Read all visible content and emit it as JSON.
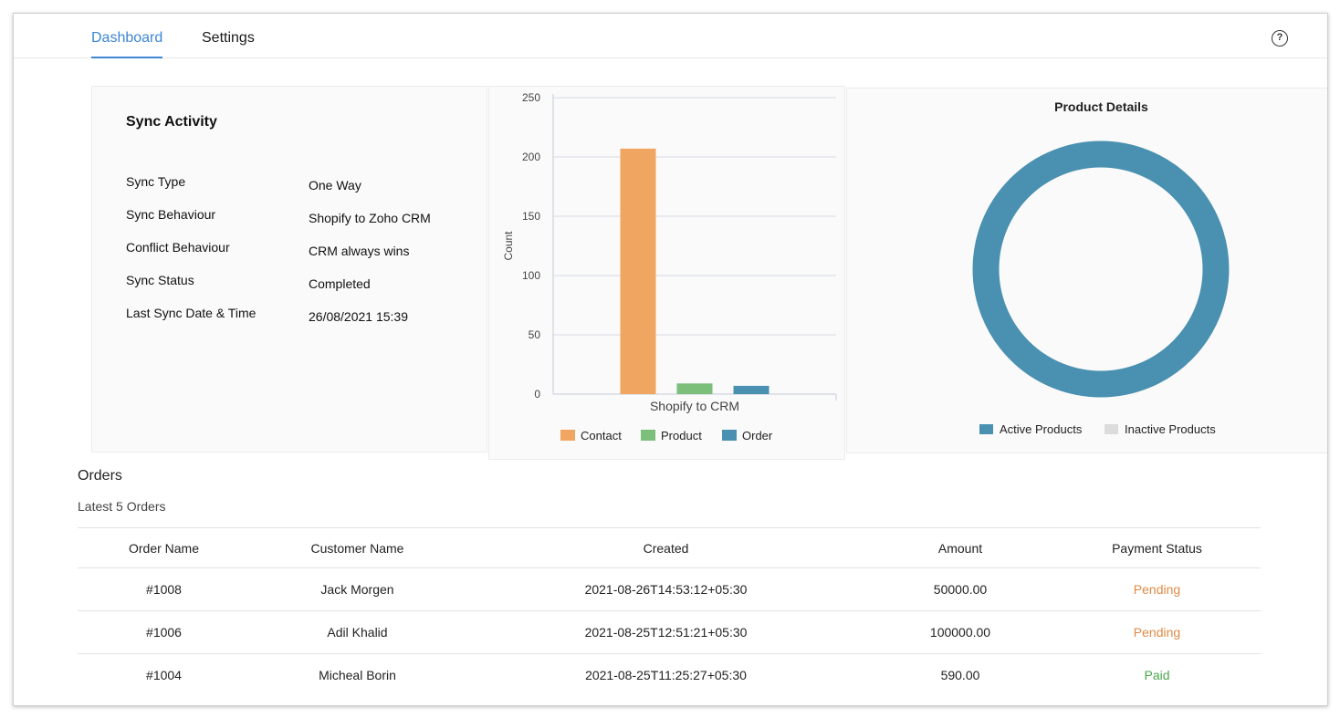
{
  "tabs": [
    {
      "label": "Dashboard",
      "active": true
    },
    {
      "label": "Settings",
      "active": false
    }
  ],
  "help_icon": {
    "symbol": "?",
    "icon": "help-circle-icon"
  },
  "sync_activity": {
    "title": "Sync Activity",
    "rows": [
      {
        "label": "Sync Type",
        "value": "One Way"
      },
      {
        "label": "Sync Behaviour",
        "value": "Shopify to Zoho CRM"
      },
      {
        "label": "Conflict Behaviour",
        "value": "CRM always wins"
      },
      {
        "label": "Sync Status",
        "value": "Completed"
      },
      {
        "label": "Last Sync Date & Time",
        "value": "26/08/2021 15:39"
      }
    ]
  },
  "chart_data": [
    {
      "type": "bar",
      "xlabel": "Shopify to CRM",
      "ylabel": "Count",
      "ylim": [
        0,
        250
      ],
      "yticks": [
        0,
        50,
        100,
        150,
        200,
        250
      ],
      "categories": [
        "Shopify to CRM"
      ],
      "series": [
        {
          "name": "Contact",
          "values": [
            207
          ],
          "color": "#f0a560"
        },
        {
          "name": "Product",
          "values": [
            9
          ],
          "color": "#7bbf7b"
        },
        {
          "name": "Order",
          "values": [
            7
          ],
          "color": "#4a90b0"
        }
      ],
      "grid": true,
      "legend": "bottom"
    },
    {
      "type": "pie",
      "title": "Product Details",
      "donut": true,
      "series": [
        {
          "name": "Active Products",
          "value": 100,
          "color": "#4a90b0"
        },
        {
          "name": "Inactive Products",
          "value": 0,
          "color": "#dcdcdc"
        }
      ],
      "legend": "bottom"
    }
  ],
  "orders": {
    "title": "Orders",
    "subtitle": "Latest 5 Orders",
    "columns": [
      "Order Name",
      "Customer Name",
      "Created",
      "Amount",
      "Payment Status"
    ],
    "rows": [
      {
        "order": "#1008",
        "customer": "Jack Morgen",
        "created": "2021-08-26T14:53:12+05:30",
        "amount": "50000.00",
        "status": "Pending"
      },
      {
        "order": "#1006",
        "customer": "Adil Khalid",
        "created": "2021-08-25T12:51:21+05:30",
        "amount": "100000.00",
        "status": "Pending"
      },
      {
        "order": "#1004",
        "customer": "Micheal Borin",
        "created": "2021-08-25T11:25:27+05:30",
        "amount": "590.00",
        "status": "Paid"
      }
    ]
  },
  "colors": {
    "accent": "#3d86d6",
    "pending": "#e08a45",
    "paid": "#4aa84a"
  }
}
